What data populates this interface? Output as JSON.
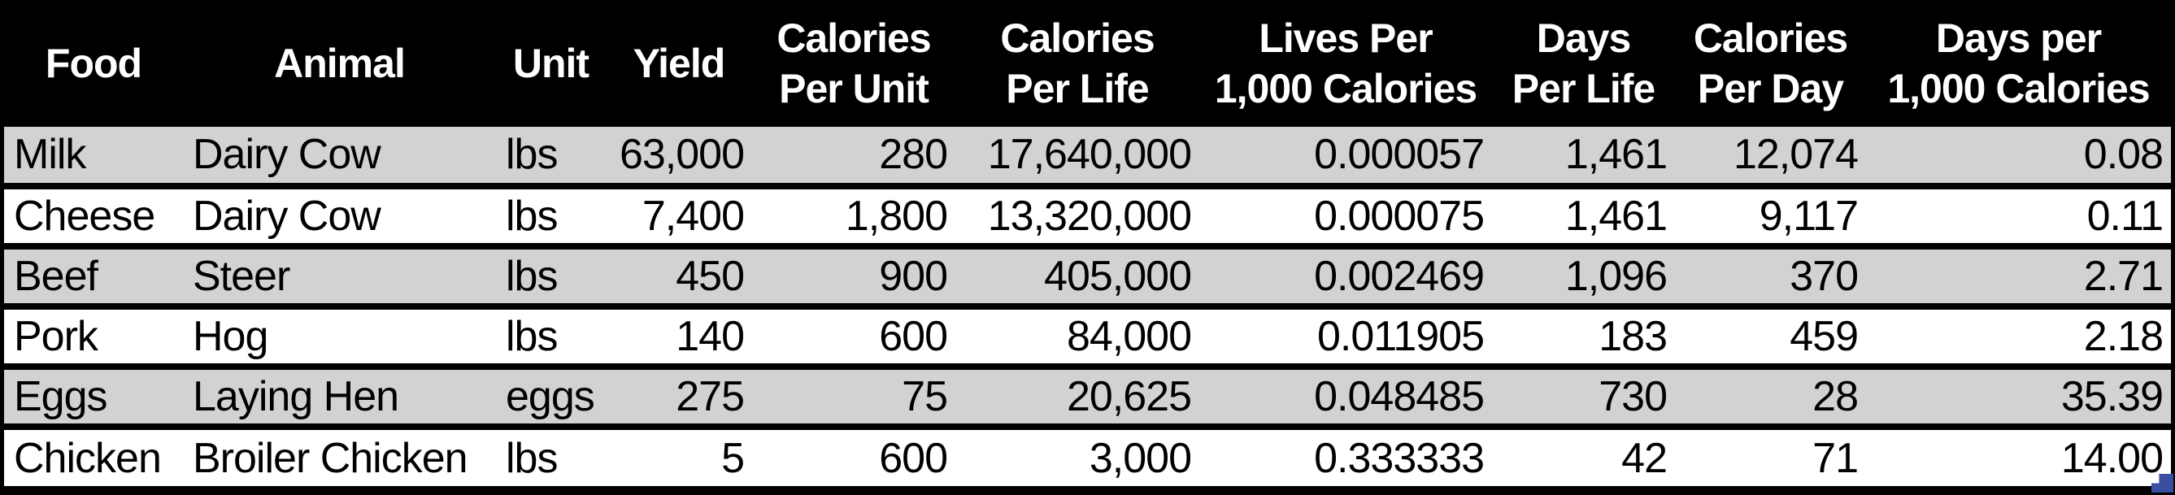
{
  "colors": {
    "header_bg": "#000000",
    "header_text": "#ffffff",
    "stripe": "#d2d2d2",
    "row_bg": "#ffffff",
    "border": "#000000",
    "fill_handle": "#3a4f9f"
  },
  "table": {
    "headers": [
      "Food",
      "Animal",
      "Unit",
      "Yield",
      "Calories\nPer Unit",
      "Calories\nPer Life",
      "Lives Per\n1,000 Calories",
      "Days\nPer Life",
      "Calories\nPer Day",
      "Days per\n1,000 Calories"
    ],
    "rows": [
      [
        "Milk",
        "Dairy Cow",
        "lbs",
        "63,000",
        "280",
        "17,640,000",
        "0.000057",
        "1,461",
        "12,074",
        "0.08"
      ],
      [
        "Cheese",
        "Dairy Cow",
        "lbs",
        "7,400",
        "1,800",
        "13,320,000",
        "0.000075",
        "1,461",
        "9,117",
        "0.11"
      ],
      [
        "Beef",
        "Steer",
        "lbs",
        "450",
        "900",
        "405,000",
        "0.002469",
        "1,096",
        "370",
        "2.71"
      ],
      [
        "Pork",
        "Hog",
        "lbs",
        "140",
        "600",
        "84,000",
        "0.011905",
        "183",
        "459",
        "2.18"
      ],
      [
        "Eggs",
        "Laying Hen",
        "eggs",
        "275",
        "75",
        "20,625",
        "0.048485",
        "730",
        "28",
        "35.39"
      ],
      [
        "Chicken",
        "Broiler Chicken",
        "lbs",
        "5",
        "600",
        "3,000",
        "0.333333",
        "42",
        "71",
        "14.00"
      ]
    ]
  }
}
